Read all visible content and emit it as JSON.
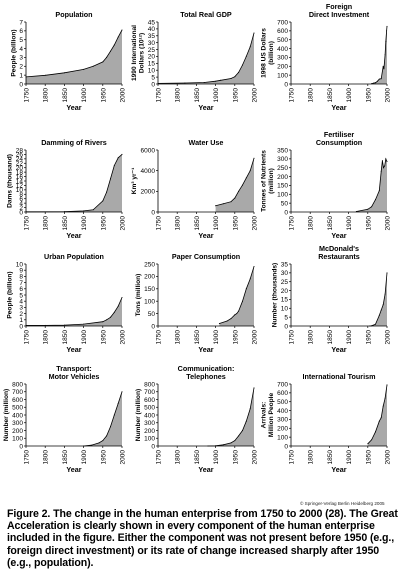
{
  "copyright": "© Springer-Verlag Berlin Heidelberg 2005",
  "caption": "Figure 2. The change in the human enterprise from 1750 to 2000 (28). The Great Acceleration is clearly shown in every component of the human enterprise included in the figure. Either the component was not present before 1950 (e.g., foreign direct investment) or its rate of change increased sharply after 1950 (e.g., population).",
  "colors": {
    "fill": "#a9a9a9",
    "line": "#000000"
  },
  "chart_data": [
    {
      "type": "area",
      "title": [
        "Population"
      ],
      "xlabel": "Year",
      "ylabel": [
        "People (billion)"
      ],
      "xlim": [
        1750,
        2000
      ],
      "ylim": [
        0,
        7
      ],
      "xticks": [
        "1750",
        "1800",
        "1850",
        "1900",
        "1950",
        "2000"
      ],
      "yticks": [
        "0",
        "1",
        "2",
        "3",
        "4",
        "5",
        "6",
        "7"
      ],
      "x": [
        1750,
        1800,
        1850,
        1900,
        1925,
        1950,
        1960,
        1970,
        1980,
        1990,
        2000
      ],
      "values": [
        0.8,
        0.98,
        1.26,
        1.65,
        2.0,
        2.5,
        3.0,
        3.7,
        4.4,
        5.3,
        6.1
      ]
    },
    {
      "type": "area",
      "title": [
        "Total Real GDP"
      ],
      "xlabel": "Year",
      "ylabel": [
        "1990 International",
        "Dollars (10¹²)"
      ],
      "xlim": [
        1750,
        2000
      ],
      "ylim": [
        0,
        45
      ],
      "xticks": [
        "1750",
        "1800",
        "1850",
        "1900",
        "1950",
        "2000"
      ],
      "yticks": [
        "0",
        "5",
        "10",
        "15",
        "20",
        "25",
        "30",
        "35",
        "40",
        "45"
      ],
      "x": [
        1750,
        1820,
        1870,
        1900,
        1913,
        1940,
        1950,
        1960,
        1970,
        1980,
        1990,
        2000
      ],
      "values": [
        0.4,
        0.7,
        1.1,
        2.0,
        2.7,
        4.0,
        5.3,
        8.4,
        13.8,
        20.0,
        27.0,
        37.0
      ]
    },
    {
      "type": "area",
      "title": [
        "Foreign",
        "Direct Investment"
      ],
      "xlabel": "Year",
      "ylabel": [
        "1998 US Dollars",
        "(billion)"
      ],
      "xlim": [
        1750,
        2000
      ],
      "ylim": [
        0,
        700
      ],
      "xticks": [
        "1750",
        "1800",
        "1850",
        "1900",
        "1950",
        "2000"
      ],
      "yticks": [
        "0",
        "100",
        "200",
        "300",
        "400",
        "500",
        "600",
        "700"
      ],
      "x": [
        1960,
        1965,
        1970,
        1975,
        1980,
        1985,
        1990,
        1992,
        1995,
        1997,
        1999,
        2000
      ],
      "values": [
        5,
        10,
        15,
        30,
        55,
        60,
        200,
        170,
        330,
        480,
        600,
        650
      ]
    },
    {
      "type": "area",
      "title": [
        "Damming of Rivers"
      ],
      "xlabel": "Year",
      "ylabel": [
        "Dams (thousand)"
      ],
      "xlim": [
        1750,
        2000
      ],
      "ylim": [
        0,
        28
      ],
      "xticks": [
        "1750",
        "1800",
        "1850",
        "1900",
        "1950",
        "2000"
      ],
      "yticks": [
        "0",
        "2",
        "4",
        "6",
        "8",
        "10",
        "12",
        "14",
        "16",
        "18",
        "20",
        "22",
        "24",
        "26",
        "28"
      ],
      "x": [
        1750,
        1850,
        1900,
        1925,
        1950,
        1960,
        1970,
        1980,
        1990,
        2000
      ],
      "values": [
        0.1,
        0.2,
        0.5,
        1.0,
        5.0,
        9.0,
        15.0,
        21.0,
        24.5,
        26.0
      ]
    },
    {
      "type": "area",
      "title": [
        "Water Use"
      ],
      "xlabel": "Year",
      "ylabel": [
        "Km³ yr⁻¹"
      ],
      "xlim": [
        1750,
        2000
      ],
      "ylim": [
        0,
        6000
      ],
      "xticks": [
        "1750",
        "1800",
        "1850",
        "1900",
        "1950",
        "2000"
      ],
      "yticks": [
        "0",
        "2000",
        "4000",
        "6000"
      ],
      "x": [
        1900,
        1920,
        1940,
        1950,
        1960,
        1970,
        1980,
        1990,
        2000
      ],
      "values": [
        600,
        800,
        1000,
        1350,
        2000,
        2600,
        3300,
        4000,
        5200
      ]
    },
    {
      "type": "area",
      "title": [
        "Fertiliser",
        "Consumption"
      ],
      "xlabel": "Year",
      "ylabel": [
        "Tonnes of Nutrients",
        "(million)"
      ],
      "xlim": [
        1750,
        2000
      ],
      "ylim": [
        0,
        350
      ],
      "xticks": [
        "1750",
        "1800",
        "1850",
        "1900",
        "1950",
        "2000"
      ],
      "yticks": [
        "0",
        "50",
        "100",
        "150",
        "200",
        "250",
        "300",
        "350"
      ],
      "x": [
        1920,
        1950,
        1960,
        1970,
        1980,
        1985,
        1988,
        1991,
        1994,
        1997,
        2000
      ],
      "values": [
        3,
        15,
        30,
        70,
        120,
        230,
        290,
        250,
        260,
        300,
        285
      ]
    },
    {
      "type": "area",
      "title": [
        "Urban Population"
      ],
      "xlabel": "Year",
      "ylabel": [
        "People (billion)"
      ],
      "xlim": [
        1750,
        2000
      ],
      "ylim": [
        0,
        10
      ],
      "xticks": [
        "1750",
        "1800",
        "1850",
        "1900",
        "1950",
        "2000"
      ],
      "yticks": [
        "0",
        "1",
        "2",
        "3",
        "4",
        "5",
        "6",
        "7",
        "8",
        "9",
        "10"
      ],
      "x": [
        1750,
        1800,
        1850,
        1900,
        1950,
        1960,
        1970,
        1980,
        1990,
        2000
      ],
      "values": [
        0.1,
        0.1,
        0.15,
        0.3,
        0.7,
        1.0,
        1.4,
        2.2,
        3.2,
        4.6
      ]
    },
    {
      "type": "area",
      "title": [
        "Paper Consumption"
      ],
      "xlabel": "Year",
      "ylabel": [
        "Tons (million)"
      ],
      "xlim": [
        1750,
        2000
      ],
      "ylim": [
        0,
        250
      ],
      "xticks": [
        "1750",
        "1800",
        "1850",
        "1900",
        "1950",
        "2000"
      ],
      "yticks": [
        "0",
        "50",
        "100",
        "150",
        "200",
        "250"
      ],
      "x": [
        1910,
        1930,
        1940,
        1950,
        1955,
        1960,
        1970,
        1980,
        1990,
        2000
      ],
      "values": [
        10,
        20,
        30,
        45,
        50,
        60,
        100,
        150,
        190,
        240
      ]
    },
    {
      "type": "area",
      "title": [
        "McDonald's",
        "Restaurants"
      ],
      "xlabel": "Year",
      "ylabel": [
        "Number (thousands)"
      ],
      "xlim": [
        1750,
        2000
      ],
      "ylim": [
        0,
        35
      ],
      "xticks": [
        "1750",
        "1800",
        "1850",
        "1900",
        "1950",
        "2000"
      ],
      "yticks": [
        "0",
        "5",
        "10",
        "15",
        "20",
        "25",
        "30",
        "35"
      ],
      "x": [
        1955,
        1960,
        1970,
        1980,
        1985,
        1990,
        1995,
        2000
      ],
      "values": [
        0.01,
        0.1,
        1.0,
        6.0,
        9.0,
        12.0,
        18.0,
        30.0
      ]
    },
    {
      "type": "area",
      "title": [
        "Transport:",
        "Motor Vehicles"
      ],
      "xlabel": "Year",
      "ylabel": [
        "Number (million)"
      ],
      "xlim": [
        1750,
        2000
      ],
      "ylim": [
        0,
        800
      ],
      "xticks": [
        "1750",
        "1800",
        "1850",
        "1900",
        "1950",
        "2000"
      ],
      "yticks": [
        "0",
        "100",
        "200",
        "300",
        "400",
        "500",
        "600",
        "700",
        "800"
      ],
      "x": [
        1900,
        1920,
        1940,
        1950,
        1960,
        1970,
        1980,
        1990,
        2000
      ],
      "values": [
        0.1,
        10,
        40,
        70,
        130,
        250,
        400,
        550,
        700
      ]
    },
    {
      "type": "area",
      "title": [
        "Communication:",
        "Telephones"
      ],
      "xlabel": "Year",
      "ylabel": [
        "Number (million)"
      ],
      "xlim": [
        1750,
        2000
      ],
      "ylim": [
        0,
        800
      ],
      "xticks": [
        "1750",
        "1800",
        "1850",
        "1900",
        "1950",
        "2000"
      ],
      "yticks": [
        "0",
        "100",
        "200",
        "300",
        "400",
        "500",
        "600",
        "700",
        "800"
      ],
      "x": [
        1880,
        1900,
        1920,
        1940,
        1950,
        1960,
        1970,
        1980,
        1990,
        2000
      ],
      "values": [
        0,
        2,
        15,
        40,
        70,
        130,
        200,
        320,
        480,
        750
      ]
    },
    {
      "type": "area",
      "title": [
        "International Tourism"
      ],
      "xlabel": "Year",
      "ylabel": [
        "Arrivals:",
        "Million People"
      ],
      "xlim": [
        1750,
        2000
      ],
      "ylim": [
        0,
        700
      ],
      "xticks": [
        "1750",
        "1800",
        "1850",
        "1900",
        "1950",
        "2000"
      ],
      "yticks": [
        "0",
        "100",
        "200",
        "300",
        "400",
        "500",
        "600",
        "700"
      ],
      "x": [
        1950,
        1960,
        1970,
        1980,
        1985,
        1990,
        1995,
        2000
      ],
      "values": [
        25,
        70,
        160,
        280,
        320,
        450,
        540,
        690
      ]
    }
  ]
}
